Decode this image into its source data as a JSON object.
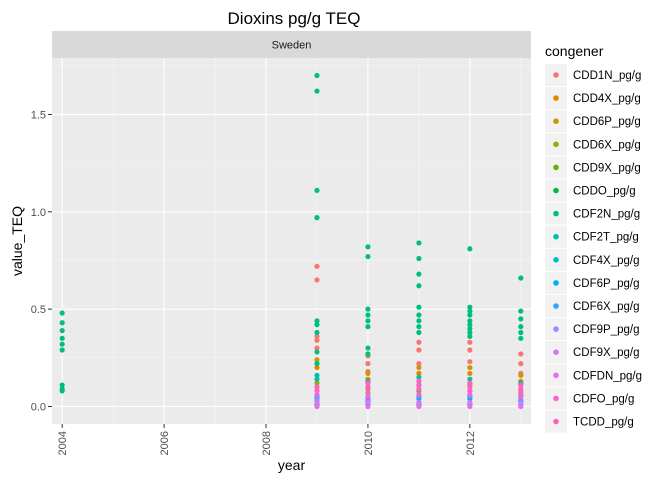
{
  "chart_data": {
    "type": "scatter",
    "title": "Dioxins pg/g TEQ",
    "facet": "Sweden",
    "xlabel": "year",
    "ylabel": "value_TEQ",
    "xlim": [
      2003.8,
      2013.2
    ],
    "ylim": [
      -0.09,
      1.79
    ],
    "x_ticks": [
      "2004",
      "2006",
      "2008",
      "2010",
      "2012"
    ],
    "y_ticks": [
      "0.0",
      "0.5",
      "1.0",
      "1.5"
    ],
    "grid": true,
    "legend_position": "right",
    "legend_title": "congener",
    "series": [
      {
        "name": "CDD1N_pg/g",
        "color": "#F8766D",
        "points": [
          [
            2009,
            0.72
          ],
          [
            2009,
            0.65
          ],
          [
            2009,
            0.36
          ],
          [
            2009,
            0.34
          ],
          [
            2009,
            0.3
          ],
          [
            2010,
            0.26
          ],
          [
            2010,
            0.22
          ],
          [
            2010,
            0.18
          ],
          [
            2011,
            0.33
          ],
          [
            2011,
            0.29
          ],
          [
            2011,
            0.22
          ],
          [
            2012,
            0.33
          ],
          [
            2012,
            0.29
          ],
          [
            2012,
            0.23
          ],
          [
            2013,
            0.27
          ],
          [
            2013,
            0.22
          ],
          [
            2013,
            0.17
          ]
        ]
      },
      {
        "name": "CDD4X_pg/g",
        "color": "#E58700",
        "points": [
          [
            2009,
            0.2
          ],
          [
            2010,
            0.14
          ],
          [
            2011,
            0.17
          ],
          [
            2012,
            0.17
          ],
          [
            2013,
            0.13
          ]
        ]
      },
      {
        "name": "CDD6P_pg/g",
        "color": "#C99800",
        "points": [
          [
            2009,
            0.24
          ],
          [
            2010,
            0.17
          ],
          [
            2011,
            0.2
          ],
          [
            2012,
            0.2
          ],
          [
            2013,
            0.16
          ]
        ]
      },
      {
        "name": "CDD6X_pg/g",
        "color": "#A3A500",
        "points": [
          [
            2009,
            0.12
          ],
          [
            2010,
            0.09
          ],
          [
            2011,
            0.11
          ],
          [
            2012,
            0.11
          ],
          [
            2013,
            0.08
          ]
        ]
      },
      {
        "name": "CDD9X_pg/g",
        "color": "#6BB100",
        "points": [
          [
            2009,
            0.1
          ],
          [
            2010,
            0.07
          ],
          [
            2011,
            0.08
          ],
          [
            2012,
            0.08
          ],
          [
            2013,
            0.06
          ]
        ]
      },
      {
        "name": "CDDO_pg/g",
        "color": "#00BA38",
        "points": [
          [
            2009,
            0.01
          ],
          [
            2010,
            0.01
          ],
          [
            2011,
            0.01
          ],
          [
            2012,
            0.01
          ],
          [
            2013,
            0.01
          ]
        ]
      },
      {
        "name": "CDF2N_pg/g",
        "color": "#00BF7D",
        "points": [
          [
            2004,
            0.48
          ],
          [
            2004,
            0.43
          ],
          [
            2004,
            0.39
          ],
          [
            2004,
            0.35
          ],
          [
            2004,
            0.32
          ],
          [
            2004,
            0.29
          ],
          [
            2004,
            0.11
          ],
          [
            2004,
            0.09
          ],
          [
            2004,
            0.08
          ],
          [
            2009,
            1.7
          ],
          [
            2009,
            1.62
          ],
          [
            2009,
            1.11
          ],
          [
            2009,
            0.97
          ],
          [
            2009,
            0.44
          ],
          [
            2009,
            0.42
          ],
          [
            2009,
            0.38
          ],
          [
            2009,
            0.28
          ],
          [
            2009,
            0.22
          ],
          [
            2010,
            0.82
          ],
          [
            2010,
            0.77
          ],
          [
            2010,
            0.5
          ],
          [
            2010,
            0.47
          ],
          [
            2010,
            0.44
          ],
          [
            2010,
            0.41
          ],
          [
            2010,
            0.3
          ],
          [
            2010,
            0.27
          ],
          [
            2011,
            0.84
          ],
          [
            2011,
            0.76
          ],
          [
            2011,
            0.68
          ],
          [
            2011,
            0.62
          ],
          [
            2011,
            0.51
          ],
          [
            2011,
            0.47
          ],
          [
            2011,
            0.44
          ],
          [
            2011,
            0.41
          ],
          [
            2011,
            0.38
          ],
          [
            2012,
            0.81
          ],
          [
            2012,
            0.51
          ],
          [
            2012,
            0.49
          ],
          [
            2012,
            0.47
          ],
          [
            2012,
            0.44
          ],
          [
            2012,
            0.42
          ],
          [
            2012,
            0.4
          ],
          [
            2012,
            0.38
          ],
          [
            2012,
            0.36
          ],
          [
            2013,
            0.66
          ],
          [
            2013,
            0.49
          ],
          [
            2013,
            0.45
          ],
          [
            2013,
            0.41
          ],
          [
            2013,
            0.38
          ],
          [
            2013,
            0.35
          ]
        ]
      },
      {
        "name": "CDF2T_pg/g",
        "color": "#00C1A3",
        "points": [
          [
            2009,
            0.16
          ],
          [
            2009,
            0.14
          ],
          [
            2010,
            0.13
          ],
          [
            2011,
            0.15
          ],
          [
            2012,
            0.14
          ],
          [
            2013,
            0.12
          ]
        ]
      },
      {
        "name": "CDF4X_pg/g",
        "color": "#00BFC4",
        "points": [
          [
            2009,
            0.06
          ],
          [
            2010,
            0.05
          ],
          [
            2011,
            0.06
          ],
          [
            2012,
            0.06
          ],
          [
            2013,
            0.05
          ]
        ]
      },
      {
        "name": "CDF6P_pg/g",
        "color": "#00B0F6",
        "points": [
          [
            2009,
            0.04
          ],
          [
            2010,
            0.03
          ],
          [
            2011,
            0.04
          ],
          [
            2012,
            0.04
          ],
          [
            2013,
            0.03
          ]
        ]
      },
      {
        "name": "CDF6X_pg/g",
        "color": "#35A2FF",
        "points": [
          [
            2009,
            0.05
          ],
          [
            2010,
            0.04
          ],
          [
            2011,
            0.05
          ],
          [
            2012,
            0.05
          ],
          [
            2013,
            0.03
          ]
        ]
      },
      {
        "name": "CDF9P_pg/g",
        "color": "#9590FF",
        "points": [
          [
            2009,
            0.03
          ],
          [
            2010,
            0.02
          ],
          [
            2011,
            0.02
          ],
          [
            2012,
            0.02
          ],
          [
            2013,
            0.02
          ]
        ]
      },
      {
        "name": "CDF9X_pg/g",
        "color": "#C77CFF",
        "points": [
          [
            2009,
            0.02
          ],
          [
            2010,
            0.02
          ],
          [
            2011,
            0.02
          ],
          [
            2012,
            0.02
          ],
          [
            2013,
            0.01
          ]
        ]
      },
      {
        "name": "CDFDN_pg/g",
        "color": "#E76BF3",
        "points": [
          [
            2009,
            0.0
          ],
          [
            2010,
            0.0
          ],
          [
            2011,
            0.0
          ],
          [
            2012,
            0.0
          ],
          [
            2013,
            0.0
          ]
        ]
      },
      {
        "name": "CDFO_pg/g",
        "color": "#FA62DB",
        "points": [
          [
            2009,
            0.08
          ],
          [
            2009,
            0.06
          ],
          [
            2010,
            0.07
          ],
          [
            2010,
            0.05
          ],
          [
            2011,
            0.09
          ],
          [
            2011,
            0.06
          ],
          [
            2012,
            0.08
          ],
          [
            2012,
            0.06
          ],
          [
            2013,
            0.07
          ],
          [
            2013,
            0.05
          ]
        ]
      },
      {
        "name": "TCDD_pg/g",
        "color": "#FF62BC",
        "points": [
          [
            2009,
            0.1
          ],
          [
            2010,
            0.12
          ],
          [
            2010,
            0.1
          ],
          [
            2011,
            0.13
          ],
          [
            2011,
            0.11
          ],
          [
            2012,
            0.12
          ],
          [
            2012,
            0.1
          ],
          [
            2013,
            0.11
          ],
          [
            2013,
            0.09
          ]
        ]
      }
    ]
  }
}
